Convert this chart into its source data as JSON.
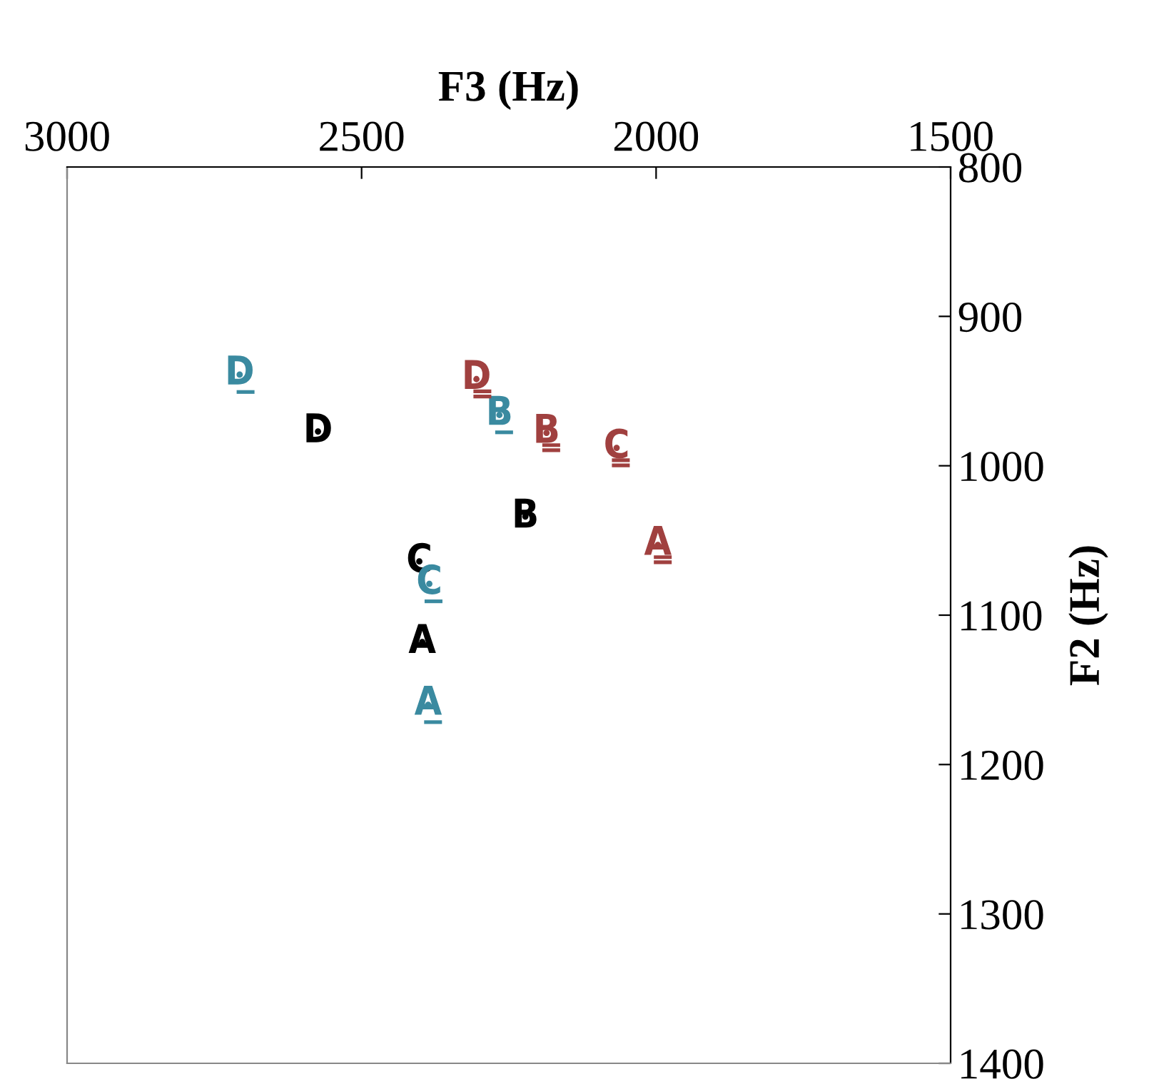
{
  "chart_data": {
    "type": "scatter",
    "xlabel": "F3 (Hz)",
    "ylabel": "F2 (Hz)",
    "xlim": [
      3000,
      1500
    ],
    "xticks": [
      3000,
      2500,
      2000,
      1500
    ],
    "ylim": [
      1400,
      800
    ],
    "yticks": [
      800,
      900,
      1000,
      1100,
      1200,
      1300,
      1400
    ],
    "grid": false,
    "series": [
      {
        "color": "#000000",
        "x": [
          2574,
          2222,
          2402,
          2397
        ],
        "values": [
          977,
          1034,
          1064,
          1118
        ],
        "value_labels": [
          "D",
          "B",
          "C",
          "A"
        ]
      },
      {
        "color": "#3a8aa0",
        "x": [
          2707,
          2266,
          2385,
          2387
        ],
        "values": [
          939,
          966,
          1079,
          1160
        ],
        "value_labels": [
          "D̲",
          "B̲",
          "C̲",
          "A̲"
        ]
      },
      {
        "color": "#a0403f",
        "x": [
          2305,
          2186,
          2067,
          1997
        ],
        "values": [
          942,
          978,
          988,
          1053
        ],
        "value_labels": [
          "D̳",
          "B̳",
          "C̳",
          "A̳"
        ]
      }
    ]
  }
}
